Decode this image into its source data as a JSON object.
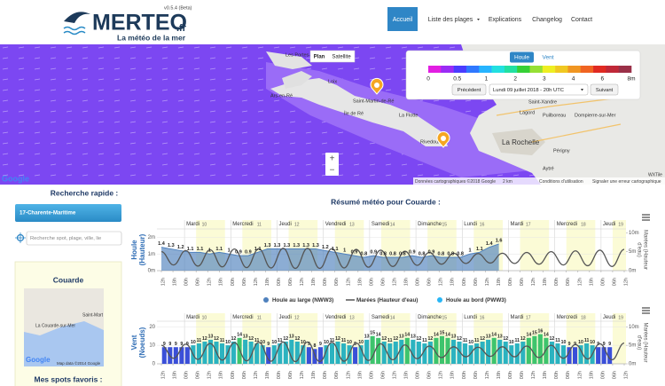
{
  "header": {
    "version": "v0.5.4 (Beta)",
    "logo": "MERTEO",
    "logo_suffix": ".fr",
    "tagline": "La météo de la mer"
  },
  "nav": [
    {
      "label": "Accueil",
      "active": true
    },
    {
      "label": "Liste des plages",
      "dropdown": true
    },
    {
      "label": "Explications"
    },
    {
      "label": "Changelog"
    },
    {
      "label": "Contact"
    }
  ],
  "map": {
    "type_buttons": [
      "Plan",
      "Satellite"
    ],
    "labels": [
      "Les Portes-en-Ré",
      "Ars-en-Ré",
      "Loix",
      "Île de Ré",
      "Saint-Martin-de-Ré",
      "La Flotte",
      "Rivedoux",
      "Saint-Xandre",
      "Lagord",
      "Puilboreau",
      "Dompierre-sur-Mer",
      "La Rochelle",
      "Aytré",
      "Périgny",
      "Nieul-sur-Mer"
    ],
    "zoom": [
      "+",
      "−"
    ],
    "google": "Google",
    "attribution": [
      "Données cartographiques ©2018 Google",
      "2 km",
      "Conditions d'utilisation",
      "Signaler une erreur cartographique"
    ],
    "tile_credit": "WXTile"
  },
  "legend": {
    "tabs": [
      {
        "label": "Houle",
        "active": true
      },
      {
        "label": "Vent"
      }
    ],
    "colors": [
      "#e21ee2",
      "#9a2cf5",
      "#4a3cff",
      "#2f78ff",
      "#26b4ff",
      "#22e0e0",
      "#22e0a2",
      "#36d036",
      "#96e034",
      "#eeee22",
      "#f0c822",
      "#f09622",
      "#f06422",
      "#e02a22",
      "#c02838",
      "#9a3048"
    ],
    "scale_labels": [
      "0",
      "0.5",
      "1",
      "2",
      "3",
      "4",
      "6",
      "8m"
    ],
    "prev": "Précédent",
    "date": "Lundi 09 juillet 2018 - 20h UTC",
    "next": "Suivant"
  },
  "sidebar": {
    "search_title": "Recherche rapide :",
    "region": "17-Charente-Maritime",
    "search_placeholder": "Recherche spot, plage, ville, lie",
    "spot": "Couarde",
    "minimap_labels": [
      "Saint-Mart",
      "La Couarde-sur-Mer"
    ],
    "minimap_google": "Google",
    "minimap_attr": "Map data ©2014 Google",
    "favorites": "Mes spots favoris :"
  },
  "summary_title": "Résumé météo pour Couarde :",
  "days": [
    {
      "name": "Mardi",
      "num": 10
    },
    {
      "name": "Mercredi",
      "num": 11
    },
    {
      "name": "Jeudi",
      "num": 12
    },
    {
      "name": "Vendredi",
      "num": 13
    },
    {
      "name": "Samedi",
      "num": 14
    },
    {
      "name": "Dimanche",
      "num": 15
    },
    {
      "name": "Lundi",
      "num": 16
    },
    {
      "name": "Mardi",
      "num": 17
    },
    {
      "name": "Mercredi",
      "num": 18
    },
    {
      "name": "Jeudi",
      "num": 19
    }
  ],
  "time_ticks": [
    "12h",
    "18h",
    "00h",
    "06h",
    "12h",
    "18h",
    "00h",
    "06h",
    "12h",
    "18h",
    "00h",
    "06h",
    "12h",
    "18h",
    "00h",
    "06h",
    "12h",
    "18h",
    "00h",
    "06h",
    "12h",
    "18h",
    "00h",
    "06h",
    "12h",
    "18h",
    "00h",
    "06h",
    "12h",
    "18h",
    "00h",
    "06h",
    "12h",
    "18h",
    "00h",
    "06h",
    "12h",
    "18h",
    "00h",
    "06h",
    "12h"
  ],
  "tide": {
    "name": "Marées (Hauteur d'eau)",
    "color": "#555555",
    "values": [
      5.0,
      1.5,
      5.3,
      1.2,
      5.5,
      1.0,
      5.7,
      0.8,
      5.8,
      0.7,
      5.9,
      0.6,
      5.9,
      0.6,
      5.8,
      0.7,
      5.6,
      0.9,
      5.4,
      1.1,
      5.1,
      1.4,
      4.8,
      1.7,
      4.6,
      1.9,
      4.5,
      2.0,
      4.6,
      1.9,
      4.8,
      1.7,
      5.0,
      1.5,
      5.2,
      1.3,
      5.4,
      1.1,
      5.6
    ]
  },
  "swell_chart": {
    "type": "area",
    "y_label": [
      "Houle",
      "(Hauteur)"
    ],
    "y2_label": [
      "Marées (Hauteur",
      "d'eau)"
    ],
    "ylim": [
      0,
      2.5
    ],
    "yticks": [
      {
        "value": 0,
        "label": "0m"
      },
      {
        "value": 1,
        "label": "1m"
      },
      {
        "value": 2,
        "label": "2m"
      }
    ],
    "y2lim": [
      0,
      11
    ],
    "y2ticks": [
      {
        "value": 0,
        "label": "0m"
      },
      {
        "value": 5,
        "label": "5m"
      },
      {
        "value": 10,
        "label": "10m"
      }
    ],
    "series": [
      {
        "name": "Houle au large (NWW3)",
        "color": "#4f81bd",
        "values": [
          1.4,
          1.3,
          1.2,
          1.1,
          1.1,
          1,
          1.1,
          1,
          0.9,
          0.9,
          1.1,
          1.3,
          1.3,
          1.3,
          1.3,
          1.3,
          1.3,
          1.2,
          1.1,
          1,
          0.9,
          0.8,
          0.9,
          0.8,
          0.8,
          0.8,
          0.9,
          0.8,
          0.9,
          0.8,
          0.8,
          0.8,
          1,
          1.1,
          1.4,
          1.6
        ]
      },
      {
        "name": "Houle au bord (PWW3)",
        "color": "#29b6f6"
      }
    ]
  },
  "wind_chart": {
    "type": "bar",
    "y_label": [
      "Vent",
      "(Noeuds)"
    ],
    "y2_label": [
      "Marées (Hauteur",
      "d'eau)"
    ],
    "ylim": [
      0,
      23
    ],
    "yticks": [
      0,
      10,
      20
    ],
    "y2lim": [
      0,
      11.5
    ],
    "y2ticks": [
      {
        "value": 0,
        "label": "0m"
      },
      {
        "value": 5,
        "label": "5m"
      },
      {
        "value": 10,
        "label": "10m"
      }
    ],
    "color_thresholds": [
      10,
      14
    ],
    "colors": [
      "#3a4fd8",
      "#2bb3c0",
      "#3ec46d"
    ],
    "values": [
      9,
      9,
      9,
      9,
      9,
      10,
      11,
      12,
      13,
      12,
      11,
      10,
      12,
      14,
      13,
      12,
      11,
      10,
      9,
      10,
      11,
      12,
      13,
      12,
      10,
      9,
      8,
      9,
      10,
      11,
      12,
      11,
      10,
      9,
      10,
      13,
      15,
      14,
      12,
      11,
      12,
      13,
      14,
      13,
      12,
      11,
      12,
      14,
      15,
      14,
      13,
      12,
      11,
      10,
      11,
      12,
      13,
      14,
      13,
      12,
      10,
      11,
      12,
      14,
      15,
      16,
      14,
      12,
      11,
      10,
      9,
      9,
      10,
      11,
      10,
      9,
      9,
      9
    ]
  }
}
